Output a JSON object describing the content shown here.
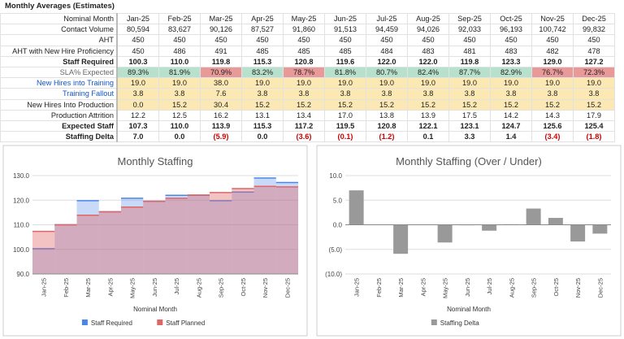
{
  "title": "Monthly Averages (Estimates)",
  "table": {
    "columns": [
      "Nominal Month",
      "Jan-25",
      "Feb-25",
      "Mar-25",
      "Apr-25",
      "May-25",
      "Jun-25",
      "Jul-25",
      "Aug-25",
      "Sep-25",
      "Oct-25",
      "Nov-25",
      "Dec-25"
    ],
    "rows": [
      [
        "Contact Volume",
        "80,594",
        "83,627",
        "90,126",
        "87,527",
        "91,860",
        "91,513",
        "94,459",
        "94,026",
        "92,033",
        "96,193",
        "100,742",
        "99,832"
      ],
      [
        "AHT",
        "450",
        "450",
        "450",
        "450",
        "450",
        "450",
        "450",
        "450",
        "450",
        "450",
        "450",
        "450"
      ],
      [
        "AHT with New Hire Proficiency",
        "450",
        "486",
        "491",
        "485",
        "485",
        "485",
        "484",
        "483",
        "481",
        "483",
        "482",
        "478"
      ],
      [
        "Staff Required",
        "100.3",
        "110.0",
        "119.8",
        "115.3",
        "120.8",
        "119.6",
        "122.0",
        "122.0",
        "119.8",
        "123.3",
        "129.0",
        "127.2"
      ],
      [
        "SLA% Expected",
        "89.3%",
        "81.9%",
        "70.9%",
        "83.2%",
        "78.7%",
        "81.8%",
        "80.7%",
        "82.4%",
        "87.7%",
        "82.9%",
        "76.7%",
        "72.3%"
      ],
      [
        "New Hires into Training",
        "19.0",
        "19.0",
        "38.0",
        "19.0",
        "19.0",
        "19.0",
        "19.0",
        "19.0",
        "19.0",
        "19.0",
        "19.0",
        "19.0"
      ],
      [
        "Training Fallout",
        "3.8",
        "3.8",
        "7.6",
        "3.8",
        "3.8",
        "3.8",
        "3.8",
        "3.8",
        "3.8",
        "3.8",
        "3.8",
        "3.8"
      ],
      [
        "New Hires Into Production",
        "0.0",
        "15.2",
        "30.4",
        "15.2",
        "15.2",
        "15.2",
        "15.2",
        "15.2",
        "15.2",
        "15.2",
        "15.2",
        "15.2"
      ],
      [
        "Production Attrition",
        "12.2",
        "12.5",
        "16.2",
        "13.1",
        "13.4",
        "17.0",
        "13.8",
        "13.9",
        "17.5",
        "14.2",
        "14.3",
        "17.9"
      ],
      [
        "Expected Staff",
        "107.3",
        "110.0",
        "113.9",
        "115.3",
        "117.2",
        "119.5",
        "120.8",
        "122.1",
        "123.1",
        "124.7",
        "125.6",
        "125.4"
      ],
      [
        "Staffing Delta",
        "7.0",
        "0.0",
        "(5.9)",
        "0.0",
        "(3.6)",
        "(0.1)",
        "(1.2)",
        "0.1",
        "3.3",
        "1.4",
        "(3.4)",
        "(1.8)"
      ]
    ]
  },
  "chart_data": [
    {
      "type": "area",
      "stepped": true,
      "title": "Monthly Staffing",
      "x_label": "Nominal Month",
      "categories": [
        "Jan-25",
        "Feb-25",
        "Mar-25",
        "Apr-25",
        "May-25",
        "Jun-25",
        "Jul-25",
        "Aug-25",
        "Sep-25",
        "Oct-25",
        "Nov-25",
        "Dec-25"
      ],
      "series": [
        {
          "name": "Staff Required",
          "color": "#4a86e8",
          "values": [
            100.3,
            110.0,
            119.8,
            115.3,
            120.8,
            119.6,
            122.0,
            122.0,
            119.8,
            123.3,
            129.0,
            127.2
          ]
        },
        {
          "name": "Staff Planned",
          "color": "#e06666",
          "values": [
            107.3,
            110.0,
            113.9,
            115.3,
            117.2,
            119.5,
            120.8,
            122.1,
            123.1,
            124.7,
            125.6,
            125.4
          ]
        }
      ],
      "ylim": [
        90,
        130
      ],
      "yticks": [
        {
          "value": 90,
          "label": "90.0"
        },
        {
          "value": 100,
          "label": "100.0"
        },
        {
          "value": 110,
          "label": "110.0"
        },
        {
          "value": 120,
          "label": "120.0"
        },
        {
          "value": 130,
          "label": "130.0"
        }
      ],
      "grid": true,
      "legend": "bottom"
    },
    {
      "type": "bar",
      "title": "Monthly Staffing (Over / Under)",
      "x_label": "Nominal Month",
      "categories": [
        "Jan-25",
        "Feb-25",
        "Mar-25",
        "Apr-25",
        "May-25",
        "Jun-25",
        "Jul-25",
        "Aug-25",
        "Sep-25",
        "Oct-25",
        "Nov-25",
        "Dec-25"
      ],
      "series": [
        {
          "name": "Staffing Delta",
          "color": "#999999",
          "values": [
            7.0,
            0.0,
            -5.9,
            0.0,
            -3.6,
            -0.1,
            -1.2,
            0.1,
            3.3,
            1.4,
            -3.4,
            -1.8
          ]
        }
      ],
      "ylim": [
        -10,
        10
      ],
      "yticks": [
        {
          "value": -10,
          "label": "(10.0)"
        },
        {
          "value": -5,
          "label": "(5.0)"
        },
        {
          "value": 0,
          "label": "0.0"
        },
        {
          "value": 5,
          "label": "5.0"
        },
        {
          "value": 10,
          "label": "10.0"
        }
      ],
      "grid": true,
      "legend": "bottom"
    }
  ]
}
